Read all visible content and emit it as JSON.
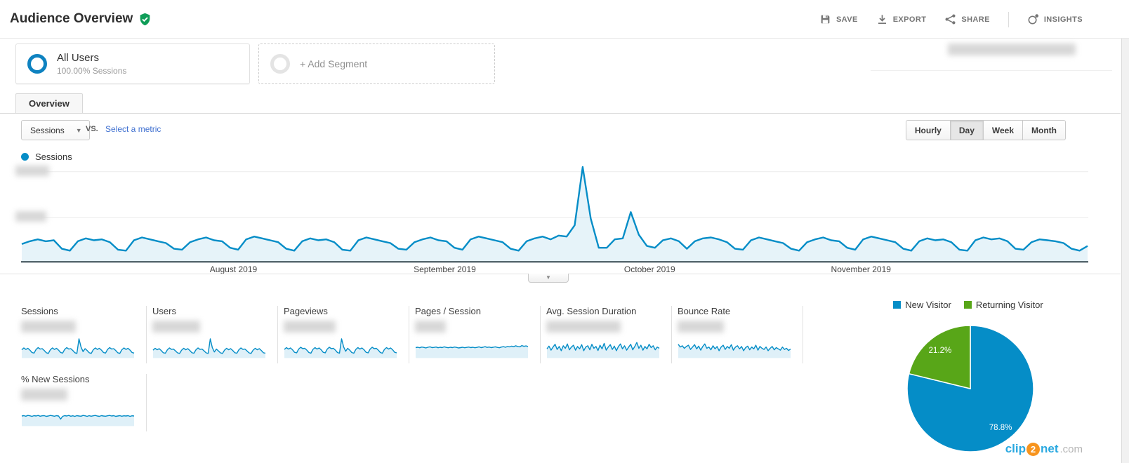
{
  "header": {
    "title": "Audience Overview",
    "badge_icon": "shield-check-icon",
    "actions": [
      {
        "id": "save",
        "label": "SAVE",
        "icon": "save-icon"
      },
      {
        "id": "export",
        "label": "EXPORT",
        "icon": "download-icon"
      },
      {
        "id": "share",
        "label": "SHARE",
        "icon": "share-icon"
      },
      {
        "id": "insights",
        "label": "INSIGHTS",
        "icon": "insights-icon"
      }
    ]
  },
  "segments": {
    "all_users": {
      "title": "All Users",
      "subtitle": "100.00% Sessions"
    },
    "add_segment_label": "+ Add Segment",
    "date_range_redacted": true
  },
  "tabs": [
    {
      "label": "Overview",
      "active": true
    }
  ],
  "toolbar": {
    "metric_selector_value": "Sessions",
    "vs_label": "VS.",
    "select_metric_label": "Select a metric",
    "granularity_options": [
      "Hourly",
      "Day",
      "Week",
      "Month"
    ],
    "granularity_selected": "Day"
  },
  "chart_data": [
    {
      "type": "line",
      "title": "Sessions",
      "x_tick_labels": [
        "August 2019",
        "September 2019",
        "October 2019",
        "November 2019"
      ],
      "y_ticks": {
        "redacted": true,
        "count": 2
      },
      "grid": true,
      "legend_position": "top-left",
      "unit": "relative_0_100_axis_values_blurred_in_source",
      "series": [
        {
          "name": "Sessions",
          "color": "#058dc7",
          "values_relative": [
            18,
            21,
            23,
            21,
            22,
            13,
            11,
            21,
            24,
            22,
            23,
            20,
            12,
            11,
            22,
            25,
            23,
            21,
            19,
            13,
            12,
            20,
            23,
            25,
            22,
            21,
            14,
            12,
            23,
            26,
            24,
            22,
            20,
            13,
            11,
            21,
            24,
            22,
            23,
            20,
            12,
            11,
            22,
            25,
            23,
            21,
            19,
            13,
            12,
            20,
            23,
            25,
            22,
            21,
            14,
            12,
            23,
            26,
            24,
            22,
            20,
            13,
            11,
            21,
            24,
            26,
            23,
            27,
            26,
            38,
            100,
            45,
            14,
            14,
            23,
            24,
            52,
            28,
            16,
            14,
            22,
            24,
            21,
            13,
            21,
            24,
            25,
            23,
            20,
            13,
            12,
            22,
            25,
            23,
            21,
            19,
            13,
            11,
            20,
            23,
            25,
            22,
            21,
            14,
            12,
            23,
            26,
            24,
            22,
            20,
            13,
            11,
            21,
            24,
            22,
            23,
            20,
            12,
            11,
            22,
            25,
            23,
            24,
            21,
            13,
            12,
            20,
            23,
            22,
            21,
            19,
            13,
            11,
            16
          ]
        }
      ]
    },
    {
      "type": "pie",
      "labels": [
        "New Visitor",
        "Returning Visitor"
      ],
      "values": [
        78.8,
        21.2
      ],
      "value_labels": [
        "78.8%",
        "21.2%"
      ],
      "colors": [
        "#058dc7",
        "#58a618"
      ],
      "legend_position": "top"
    }
  ],
  "metric_cards": [
    {
      "label": "Sessions",
      "value_redacted": true,
      "spark": [
        40,
        50,
        42,
        48,
        38,
        25,
        22,
        42,
        52,
        44,
        46,
        36,
        24,
        20,
        40,
        50,
        42,
        48,
        38,
        25,
        22,
        42,
        52,
        44,
        46,
        36,
        24,
        20,
        100,
        55,
        30,
        46,
        36,
        24,
        20,
        40,
        50,
        42,
        48,
        38,
        25,
        22,
        42,
        52,
        44,
        46,
        36,
        24,
        20,
        40,
        50,
        42,
        48,
        38,
        25,
        22
      ]
    },
    {
      "label": "Users",
      "value_redacted": true,
      "spark": [
        38,
        48,
        40,
        46,
        36,
        24,
        21,
        40,
        50,
        42,
        44,
        34,
        23,
        20,
        38,
        48,
        40,
        46,
        36,
        24,
        21,
        40,
        50,
        42,
        44,
        34,
        23,
        20,
        100,
        52,
        28,
        44,
        34,
        23,
        20,
        38,
        48,
        40,
        46,
        36,
        24,
        21,
        40,
        50,
        42,
        44,
        34,
        23,
        20,
        38,
        48,
        40,
        46,
        36,
        24,
        21
      ]
    },
    {
      "label": "Pageviews",
      "value_redacted": true,
      "spark": [
        42,
        52,
        44,
        50,
        40,
        26,
        23,
        44,
        54,
        46,
        48,
        38,
        25,
        21,
        42,
        52,
        44,
        50,
        40,
        26,
        23,
        44,
        54,
        46,
        48,
        38,
        25,
        21,
        100,
        56,
        32,
        48,
        38,
        25,
        21,
        42,
        52,
        44,
        50,
        40,
        26,
        23,
        44,
        54,
        46,
        48,
        38,
        25,
        21,
        42,
        52,
        44,
        50,
        40,
        26,
        23
      ]
    },
    {
      "label": "Pages / Session",
      "value_redacted": true,
      "spark": [
        52,
        54,
        51,
        55,
        53,
        50,
        54,
        56,
        52,
        53,
        55,
        51,
        54,
        52,
        56,
        53,
        51,
        54,
        52,
        55,
        53,
        50,
        52,
        54,
        51,
        53,
        55,
        52,
        54,
        51,
        53,
        56,
        52,
        54,
        57,
        53,
        55,
        52,
        54,
        56,
        53,
        51,
        55,
        57,
        54,
        58,
        56,
        60,
        57,
        62,
        58,
        56,
        63,
        59,
        61,
        58
      ]
    },
    {
      "label": "Avg. Session Duration",
      "value_redacted": true,
      "spark": [
        45,
        60,
        38,
        55,
        70,
        42,
        58,
        35,
        62,
        48,
        72,
        40,
        55,
        65,
        38,
        58,
        45,
        68,
        35,
        55,
        62,
        40,
        70,
        48,
        58,
        36,
        65,
        45,
        75,
        38,
        55,
        68,
        42,
        60,
        35,
        58,
        72,
        45,
        62,
        38,
        55,
        70,
        40,
        58,
        80,
        48,
        65,
        38,
        58,
        45,
        70,
        52,
        62,
        40,
        55,
        48
      ]
    },
    {
      "label": "Bounce Rate",
      "value_redacted": true,
      "spark": [
        70,
        55,
        62,
        48,
        58,
        65,
        42,
        55,
        68,
        45,
        60,
        38,
        58,
        72,
        48,
        55,
        40,
        62,
        45,
        58,
        35,
        55,
        65,
        42,
        58,
        48,
        68,
        38,
        55,
        62,
        45,
        58,
        35,
        52,
        60,
        40,
        55,
        45,
        65,
        38,
        58,
        48,
        42,
        55,
        35,
        48,
        58,
        40,
        52,
        45,
        38,
        55,
        42,
        48,
        36,
        44
      ]
    },
    {
      "label": "% New Sessions",
      "value_redacted": true,
      "spark": [
        50,
        52,
        49,
        53,
        51,
        48,
        52,
        50,
        53,
        49,
        51,
        52,
        48,
        50,
        53,
        51,
        49,
        52,
        50,
        33,
        48,
        52,
        50,
        53,
        49,
        51,
        48,
        52,
        50,
        49,
        53,
        51,
        48,
        52,
        49,
        51,
        53,
        50,
        48,
        52,
        50,
        49,
        51,
        53,
        50,
        52,
        48,
        50,
        52,
        49,
        51,
        50,
        52,
        48,
        51,
        50
      ]
    }
  ],
  "watermark": {
    "clip": "clip",
    "two": "2",
    "net": "net",
    "dotcom": ".com"
  },
  "colors": {
    "accent_blue": "#058dc7",
    "accent_green": "#58a618",
    "badge_green": "#0f9d58",
    "area_fill": "rgba(5,141,199,0.10)"
  }
}
